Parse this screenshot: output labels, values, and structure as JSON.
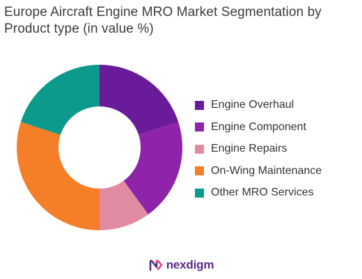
{
  "title": "Europe Aircraft Engine MRO Market Segmentation by Product type (in value %)",
  "brand": {
    "name": "nexdigm",
    "logo_color": "#5b2a86"
  },
  "chart_data": {
    "type": "pie",
    "donut": true,
    "title": "Europe Aircraft Engine MRO Market Segmentation by Product type (in value %)",
    "legend_position": "right",
    "categories": [
      "Engine Overhaul",
      "Engine Component",
      "Engine Repairs",
      "On-Wing Maintenance",
      "Other MRO Services"
    ],
    "values": [
      20,
      20,
      10,
      30,
      20
    ],
    "colors": [
      "#6a1b9a",
      "#8e24aa",
      "#e08ba1",
      "#f57f28",
      "#0b9a8c"
    ]
  }
}
